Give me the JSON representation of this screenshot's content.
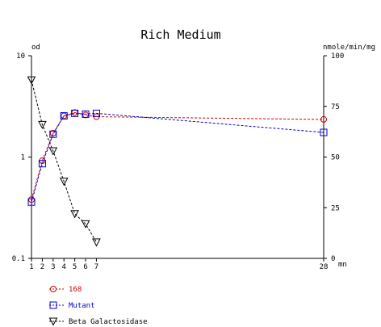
{
  "chart_data": {
    "type": "line",
    "title": "Rich Medium",
    "left_axis_label": "od",
    "right_axis_label": "nmole/min/mg",
    "x_unit_label": "mn",
    "x_ticks": [
      1,
      2,
      3,
      4,
      5,
      6,
      7,
      28
    ],
    "x_range": [
      1,
      28
    ],
    "left_axis": {
      "scale": "log",
      "range": [
        0.1,
        10
      ],
      "ticks": [
        0.1,
        1,
        10
      ],
      "tick_labels": [
        "0.1",
        "1",
        "10"
      ]
    },
    "right_axis": {
      "scale": "linear",
      "range": [
        0,
        100
      ],
      "ticks": [
        0,
        25,
        50,
        75,
        100
      ],
      "tick_labels": [
        "0",
        "25",
        "50",
        "75",
        "100"
      ]
    },
    "grid": false,
    "legend_position": "bottom-left",
    "series": [
      {
        "name": "168",
        "axis": "left",
        "marker": "circle",
        "color": "#cc0000",
        "x": [
          1,
          2,
          3,
          4,
          5,
          6,
          7,
          28
        ],
        "y": [
          0.38,
          0.92,
          1.72,
          2.55,
          2.75,
          2.6,
          2.5,
          2.35
        ]
      },
      {
        "name": "Mutant",
        "axis": "left",
        "marker": "square",
        "color": "#0000cc",
        "x": [
          1,
          2,
          3,
          4,
          5,
          6,
          7,
          28
        ],
        "y": [
          0.36,
          0.86,
          1.68,
          2.55,
          2.7,
          2.65,
          2.7,
          1.75
        ]
      },
      {
        "name": "Beta Galactosidase",
        "axis": "right",
        "marker": "triangle-down",
        "color": "#000000",
        "x": [
          1,
          2,
          3,
          4,
          5,
          6,
          7
        ],
        "y": [
          88,
          66,
          53,
          38,
          22,
          17,
          8
        ]
      }
    ]
  }
}
